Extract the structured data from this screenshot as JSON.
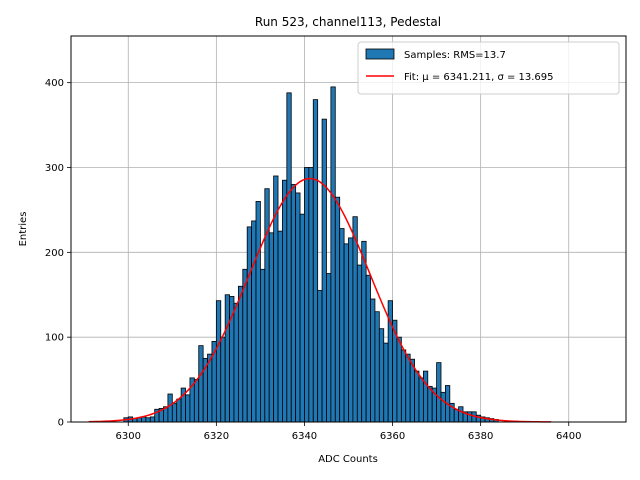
{
  "chart_data": {
    "type": "bar",
    "title": "Run 523, channel113, Pedestal",
    "xlabel": "ADC Counts",
    "ylabel": "Entries",
    "xlim": [
      6287,
      6413
    ],
    "ylim": [
      0,
      455
    ],
    "xticks": [
      6300,
      6320,
      6340,
      6360,
      6380,
      6400
    ],
    "yticks": [
      0,
      100,
      200,
      300,
      400
    ],
    "grid": true,
    "legend_position": "top-right",
    "bin_width": 1,
    "bins": [
      6299,
      6300,
      6301,
      6302,
      6303,
      6304,
      6305,
      6306,
      6307,
      6308,
      6309,
      6310,
      6311,
      6312,
      6313,
      6314,
      6315,
      6316,
      6317,
      6318,
      6319,
      6320,
      6321,
      6322,
      6323,
      6324,
      6325,
      6326,
      6327,
      6328,
      6329,
      6330,
      6331,
      6332,
      6333,
      6334,
      6335,
      6336,
      6337,
      6338,
      6339,
      6340,
      6341,
      6342,
      6343,
      6344,
      6345,
      6346,
      6347,
      6348,
      6349,
      6350,
      6351,
      6352,
      6353,
      6354,
      6355,
      6356,
      6357,
      6358,
      6359,
      6360,
      6361,
      6362,
      6363,
      6364,
      6365,
      6366,
      6367,
      6368,
      6369,
      6370,
      6371,
      6372,
      6373,
      6374,
      6375,
      6376,
      6377,
      6378,
      6379,
      6380,
      6381,
      6382,
      6383
    ],
    "counts": [
      5,
      6,
      4,
      5,
      6,
      5,
      6,
      15,
      16,
      18,
      33,
      22,
      27,
      40,
      32,
      52,
      50,
      90,
      75,
      80,
      95,
      143,
      100,
      150,
      148,
      140,
      160,
      180,
      230,
      237,
      260,
      180,
      275,
      223,
      290,
      225,
      285,
      388,
      280,
      270,
      245,
      300,
      300,
      380,
      155,
      357,
      175,
      395,
      265,
      228,
      210,
      217,
      242,
      185,
      213,
      173,
      145,
      130,
      110,
      93,
      143,
      120,
      100,
      85,
      80,
      74,
      60,
      52,
      60,
      42,
      40,
      70,
      35,
      43,
      22,
      15,
      18,
      12,
      12,
      12,
      8,
      6,
      5,
      4,
      3
    ],
    "series": [
      {
        "name": "Samples: RMS=13.7",
        "kind": "histogram",
        "color": "#1f77b4",
        "edgecolor": "#000000"
      },
      {
        "name": "Fit: μ = 6341.211, σ = 13.695",
        "kind": "gaussian-fit",
        "color": "#ff0000",
        "mu": 6341.211,
        "sigma": 13.695,
        "amplitude": 287,
        "x_range": [
          6291,
          6396
        ]
      }
    ]
  }
}
